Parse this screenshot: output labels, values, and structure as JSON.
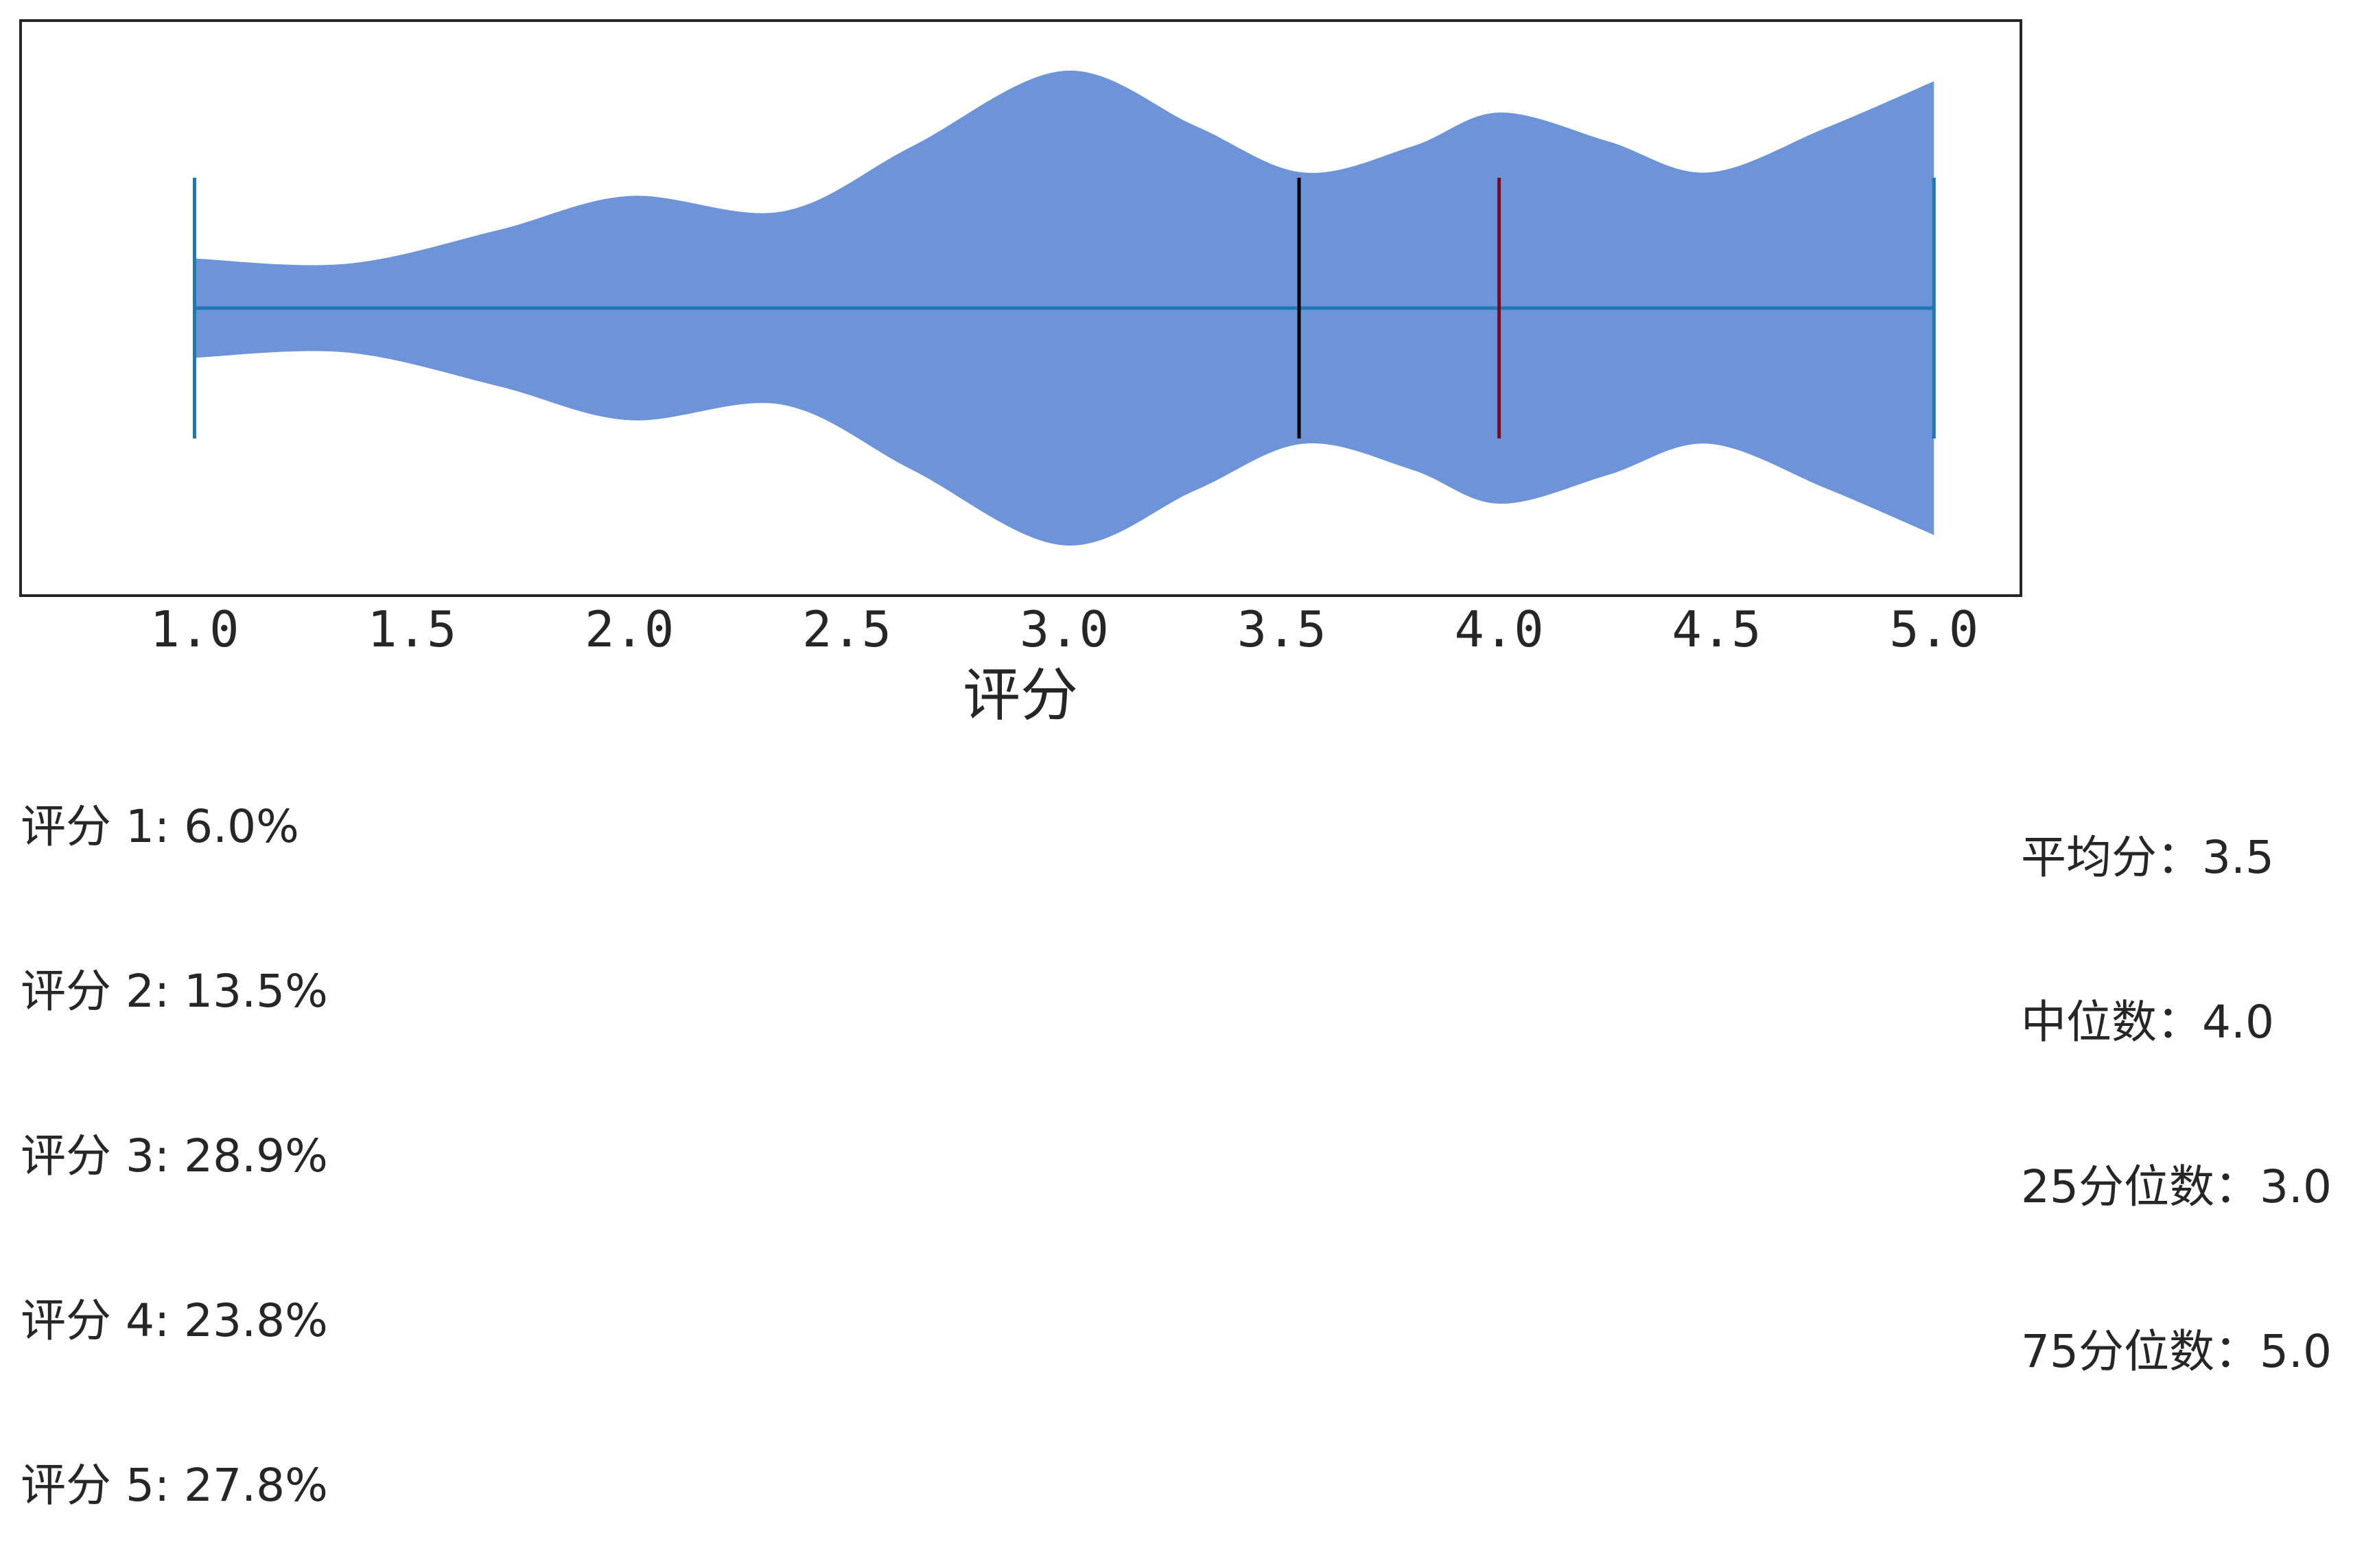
{
  "chart_data": {
    "type": "violin",
    "orientation": "horizontal",
    "xlabel": "评分",
    "xlim": [
      0.6,
      5.2
    ],
    "x_ticks": [
      "1.0",
      "1.5",
      "2.0",
      "2.5",
      "3.0",
      "3.5",
      "4.0",
      "4.5",
      "5.0"
    ],
    "x_tick_values": [
      1.0,
      1.5,
      2.0,
      2.5,
      3.0,
      3.5,
      4.0,
      4.5,
      5.0
    ],
    "y_ticks": [],
    "violin": {
      "min": 1.0,
      "max": 5.0,
      "mean": 3.54,
      "median": 4.0,
      "density_profile": [
        {
          "x": 1.0,
          "w": 0.19
        },
        {
          "x": 1.35,
          "w": 0.17
        },
        {
          "x": 1.7,
          "w": 0.3
        },
        {
          "x": 2.0,
          "w": 0.43
        },
        {
          "x": 2.35,
          "w": 0.37
        },
        {
          "x": 2.65,
          "w": 0.62
        },
        {
          "x": 3.0,
          "w": 0.91
        },
        {
          "x": 3.3,
          "w": 0.7
        },
        {
          "x": 3.55,
          "w": 0.52
        },
        {
          "x": 3.8,
          "w": 0.62
        },
        {
          "x": 4.0,
          "w": 0.75
        },
        {
          "x": 4.25,
          "w": 0.64
        },
        {
          "x": 4.48,
          "w": 0.52
        },
        {
          "x": 4.75,
          "w": 0.69
        },
        {
          "x": 5.0,
          "w": 0.87
        }
      ]
    },
    "colors": {
      "violin_fill": "#6d94d9",
      "range_line": "#1f77b4",
      "mean_line": "#000000",
      "median_line": "#7b0a1e",
      "frame": "#262626"
    },
    "grid": false,
    "legend": "none"
  },
  "distribution": [
    "评分 1: 6.0%",
    "评分 2: 13.5%",
    "评分 3: 28.9%",
    "评分 4: 23.8%",
    "评分 5: 27.8%"
  ],
  "summary": [
    "平均分：3.5",
    "中位数：4.0",
    "25分位数：3.0",
    "75分位数：5.0"
  ]
}
